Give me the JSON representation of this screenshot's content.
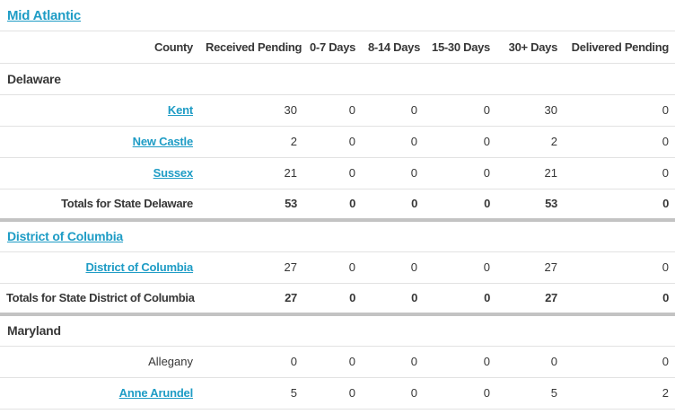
{
  "colors": {
    "link": "#1e9cc5",
    "text": "#373737",
    "row_border": "#e2e2e2",
    "section_separator": "#c3c3c3",
    "background": "#ffffff"
  },
  "region": {
    "label": "Mid Atlantic"
  },
  "table": {
    "columns": [
      "County",
      "Received Pending",
      "0-7 Days",
      "8-14 Days",
      "15-30 Days",
      "30+ Days",
      "Delivered Pending"
    ],
    "sections": [
      {
        "state": "Delaware",
        "state_is_link": false,
        "rows": [
          {
            "county": "Kent",
            "is_link": true,
            "values": [
              "30",
              "0",
              "0",
              "0",
              "30",
              "0"
            ]
          },
          {
            "county": "New Castle",
            "is_link": true,
            "values": [
              "2",
              "0",
              "0",
              "0",
              "2",
              "0"
            ]
          },
          {
            "county": "Sussex",
            "is_link": true,
            "values": [
              "21",
              "0",
              "0",
              "0",
              "21",
              "0"
            ]
          }
        ],
        "totals": {
          "label": "Totals for State Delaware",
          "values": [
            "53",
            "0",
            "0",
            "0",
            "53",
            "0"
          ]
        }
      },
      {
        "state": "District of Columbia",
        "state_is_link": true,
        "rows": [
          {
            "county": "District of Columbia",
            "is_link": true,
            "values": [
              "27",
              "0",
              "0",
              "0",
              "27",
              "0"
            ]
          }
        ],
        "totals": {
          "label": "Totals for State District of Columbia",
          "values": [
            "27",
            "0",
            "0",
            "0",
            "27",
            "0"
          ]
        }
      },
      {
        "state": "Maryland",
        "state_is_link": false,
        "rows": [
          {
            "county": "Allegany",
            "is_link": false,
            "values": [
              "0",
              "0",
              "0",
              "0",
              "0",
              "0"
            ]
          },
          {
            "county": "Anne Arundel",
            "is_link": true,
            "values": [
              "5",
              "0",
              "0",
              "0",
              "5",
              "2"
            ]
          }
        ],
        "totals": null
      }
    ]
  }
}
